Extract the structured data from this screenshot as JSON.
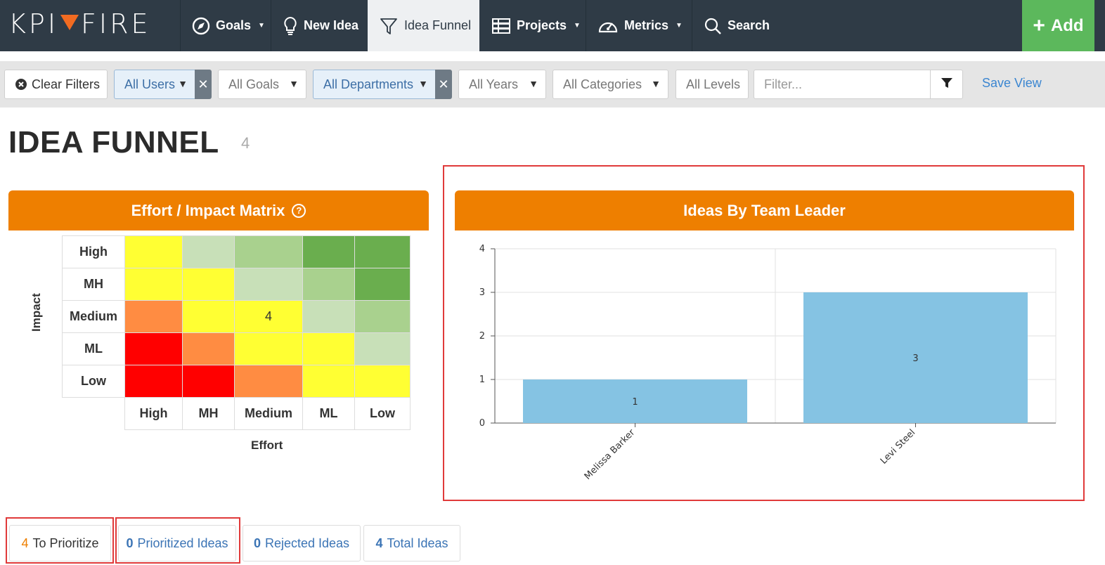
{
  "nav": {
    "logo": "KPI FIRE",
    "items": [
      {
        "label": "Goals",
        "icon": "compass-icon"
      },
      {
        "label": "New Idea",
        "icon": "lightbulb-icon"
      },
      {
        "label": "Idea Funnel",
        "icon": "funnel-icon"
      },
      {
        "label": "Projects",
        "icon": "projects-icon"
      },
      {
        "label": "Metrics",
        "icon": "speedometer-icon"
      },
      {
        "label": "Search",
        "icon": "search-icon"
      }
    ],
    "add_label": "Add",
    "accent": "#5cb85c"
  },
  "filters": {
    "clear_label": "Clear Filters",
    "users": "All Users",
    "goals": "All Goals",
    "departments": "All Departments",
    "years": "All Years",
    "categories": "All Categories",
    "levels": "All Levels",
    "filter_placeholder": "Filter...",
    "save_view": "Save View"
  },
  "page": {
    "title": "IDEA FUNNEL",
    "count": "4"
  },
  "matrix": {
    "title": "Effort / Impact Matrix",
    "impact_label": "Impact",
    "effort_label": "Effort",
    "rows": [
      "High",
      "MH",
      "Medium",
      "ML",
      "Low"
    ],
    "cols": [
      "High",
      "MH",
      "Medium",
      "ML",
      "Low"
    ],
    "colors": [
      [
        "#ffff33",
        "#c8e0b8",
        "#a9d18e",
        "#6aae4e",
        "#6aae4e"
      ],
      [
        "#ffff33",
        "#ffff33",
        "#c8e0b8",
        "#a9d18e",
        "#6aae4e"
      ],
      [
        "#ff8c42",
        "#ffff33",
        "#ffff33",
        "#c8e0b8",
        "#a9d18e"
      ],
      [
        "#ff0000",
        "#ff8c42",
        "#ffff33",
        "#ffff33",
        "#c8e0b8"
      ],
      [
        "#ff0000",
        "#ff0000",
        "#ff8c42",
        "#ffff33",
        "#ffff33"
      ]
    ],
    "values": [
      [
        "",
        "",
        "",
        "",
        ""
      ],
      [
        "",
        "",
        "",
        "",
        ""
      ],
      [
        "",
        "",
        "4",
        "",
        ""
      ],
      [
        "",
        "",
        "",
        "",
        ""
      ],
      [
        "",
        "",
        "",
        "",
        ""
      ]
    ]
  },
  "chart_panel": {
    "title": "Ideas By Team Leader"
  },
  "chart_data": {
    "type": "bar",
    "categories": [
      "Melissa Barker",
      "Levi Steel"
    ],
    "values": [
      1,
      3
    ],
    "ylim": [
      0,
      4
    ],
    "yticks": [
      0,
      1,
      2,
      3,
      4
    ],
    "bar_color": "#85c3e3",
    "grid": true,
    "data_labels": [
      "1",
      "3"
    ]
  },
  "tabs": [
    {
      "num": "4",
      "label": "To Prioritize"
    },
    {
      "num": "0",
      "label": "Prioritized Ideas"
    },
    {
      "num": "0",
      "label": "Rejected Ideas"
    },
    {
      "num": "4",
      "label": "Total Ideas"
    }
  ]
}
